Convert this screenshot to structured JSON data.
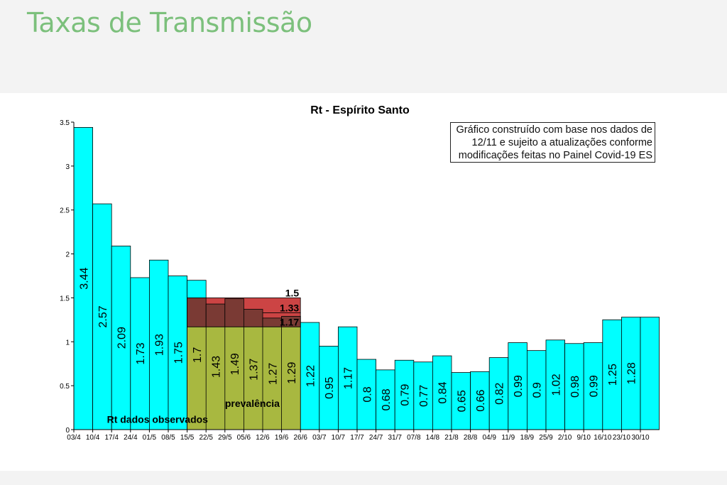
{
  "slide": {
    "title": "Taxas de Transmissão"
  },
  "note": {
    "lines": [
      "Gráfico construído com base nos dados de",
      "12/11 e sujeito a atualizações conforme",
      "modificações feitas no Painel Covid-19 ES"
    ]
  },
  "colors": {
    "bar": "#00ffff",
    "prevalence": "#a8b840",
    "band_dark": "#7a3a34",
    "band_red": "#cc4444",
    "background": "#ffffff"
  },
  "chart_data": {
    "type": "bar",
    "title": "Rt - Espírito Santo",
    "xlabel": "",
    "ylabel": "",
    "ylim": [
      0,
      3.5
    ],
    "yticks": [
      "0",
      "0.5",
      "1",
      "1.5",
      "2",
      "2.5",
      "3",
      "3.5"
    ],
    "categories": [
      "03/4",
      "10/4",
      "17/4",
      "24/4",
      "01/5",
      "08/5",
      "15/5",
      "22/5",
      "29/5",
      "05/6",
      "12/6",
      "19/6",
      "26/6",
      "03/7",
      "10/7",
      "17/7",
      "24/7",
      "31/7",
      "07/8",
      "14/8",
      "21/8",
      "28/8",
      "04/9",
      "11/9",
      "18/9",
      "25/9",
      "2/10",
      "9/10",
      "16/10",
      "23/10",
      "30/10"
    ],
    "series": [
      {
        "values": [
          3.44,
          2.57,
          2.09,
          1.73,
          1.93,
          1.75,
          1.7,
          1.43,
          1.49,
          1.37,
          1.27,
          1.29,
          1.22,
          0.95,
          1.17,
          0.8,
          0.68,
          0.79,
          0.77,
          0.84,
          0.65,
          0.66,
          0.82,
          0.99,
          0.9,
          1.02,
          0.98,
          0.99,
          1.25,
          1.28,
          1.28
        ],
        "labels": [
          "3.44",
          "2.57",
          "2.09",
          "1.73",
          "1.93",
          "1.75",
          "1.7",
          "1.43",
          "1.49",
          "1.37",
          "1.27",
          "1.29",
          "1.22",
          "0.95",
          "1.17",
          "0.8",
          "0.68",
          "0.79",
          "0.77",
          "0.84",
          "0.65",
          "0.66",
          "0.82",
          "0.99",
          "0.9",
          "1.02",
          "0.98",
          "0.99",
          "1.25",
          "1.28",
          ""
        ]
      }
    ],
    "prevalence_region": {
      "label": "prevalência",
      "start_category": "15/5",
      "end_category": "19/6",
      "base_value": 1.17,
      "band_levels": [
        1.17,
        1.33,
        1.5
      ],
      "band_labels": [
        "1.17",
        "1.33",
        "1.5"
      ]
    },
    "annotations": [
      {
        "text": "Rt dados observados",
        "category": "10/4",
        "y": 0.1
      }
    ]
  }
}
